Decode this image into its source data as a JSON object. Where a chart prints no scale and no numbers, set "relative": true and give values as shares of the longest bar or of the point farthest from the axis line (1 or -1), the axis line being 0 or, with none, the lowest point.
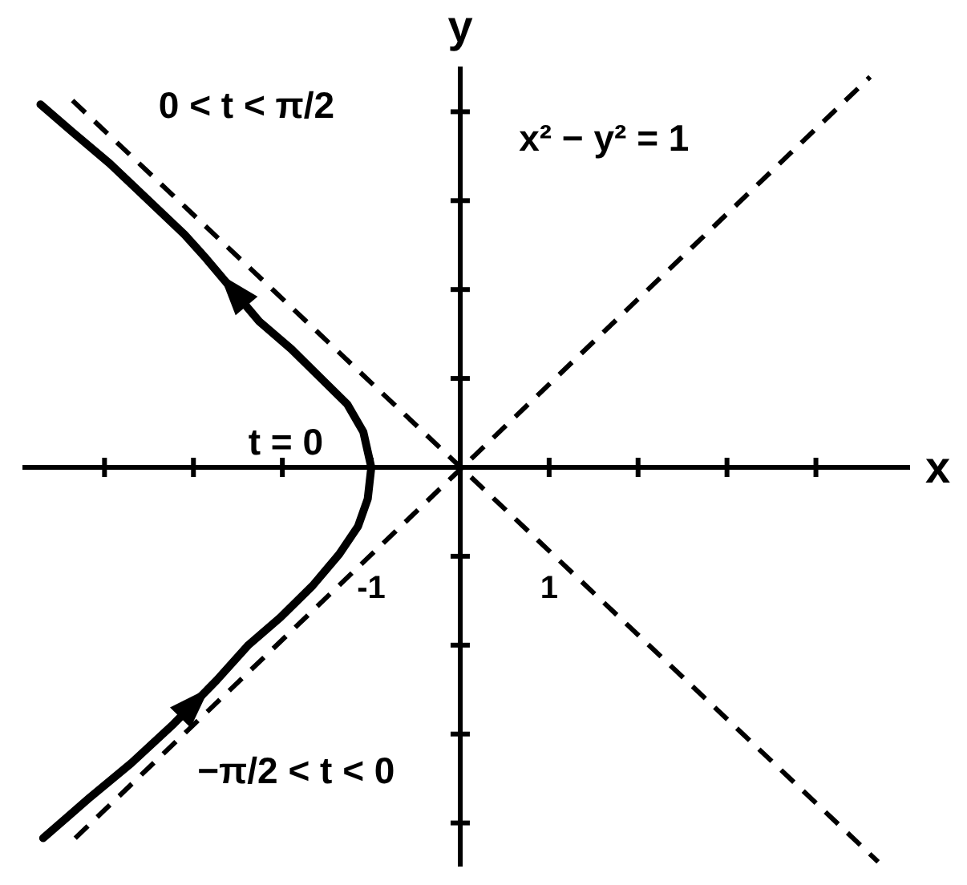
{
  "chart_data": {
    "type": "line",
    "xlabel": "x",
    "ylabel": "y",
    "relative": true,
    "annotations": [
      "0 < t < π/2",
      "x² − y² = 1",
      {
        "text": "t = 0",
        "x": -1,
        "y": 0
      },
      "−π/2 < t < 0"
    ],
    "series": [
      {
        "color": "#000000",
        "line_style": "solid",
        "x": [
          -4.69,
          -4.18,
          -3.7,
          -3.22,
          -2.74,
          -2.38,
          -2.02,
          -1.66,
          -1.36,
          -1.15,
          -1.04,
          -1.0,
          -1.09,
          -1.27,
          -1.54,
          -1.9,
          -2.26,
          -2.86,
          -3.1,
          -3.52,
          -3.94,
          -4.36,
          -4.72
        ],
        "values": [
          -0.94,
          -0.84,
          -0.75,
          -0.65,
          -0.54,
          -0.45,
          -0.38,
          -0.3,
          -0.22,
          -0.15,
          -0.08,
          0,
          0.09,
          0.16,
          0.22,
          0.3,
          0.37,
          0.53,
          0.59,
          0.68,
          0.77,
          0.85,
          0.92
        ]
      },
      {
        "color": "#000000",
        "line_style": "dashed",
        "x": [
          -4.33,
          4.61
        ],
        "values": [
          -0.94,
          0.99
        ]
      },
      {
        "color": "#000000",
        "line_style": "dashed",
        "x": [
          -4.36,
          4.7
        ],
        "values": [
          0.93,
          -1
        ]
      }
    ],
    "xlim": [
      -4.9,
      5.05
    ],
    "xticks": [
      {
        "value": -4,
        "label": null
      },
      {
        "value": -3,
        "label": null
      },
      {
        "value": -2,
        "label": null
      },
      -1,
      1,
      {
        "value": 2,
        "label": null
      },
      {
        "value": 3,
        "label": null
      },
      {
        "value": 4,
        "label": null
      }
    ],
    "grid": false,
    "legend": false,
    "marker": "none"
  }
}
